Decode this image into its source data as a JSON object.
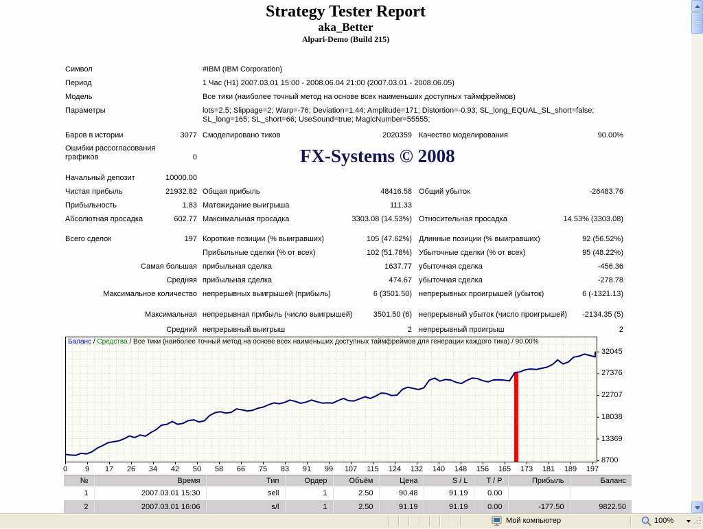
{
  "report": {
    "title": "Strategy Tester Report",
    "subtitle": "aka_Better",
    "build": "Alpari-Demo (Build 215)",
    "watermark": "FX-Systems © 2008"
  },
  "stats": {
    "rows": [
      {
        "a": "Символ",
        "wide": "#IBM (IBM Corporation)"
      },
      {
        "a": "Период",
        "wide": "1 Час (H1) 2007.03.01 15:00 - 2008.06.04 21:00 (2007.03.01 - 2008.06.05)"
      },
      {
        "a": "Модель",
        "wide": "Все тики (наиболее точный метод на основе всех наименьших доступных таймфреймов)"
      },
      {
        "a": "Параметры",
        "wide": "lots=2.5; Slippage=2; Warp=-76; Deviation=1.44; Amplitude=171; Distortion=-0.93; SL_long_EQUAL_SL_short=false; SL_long=165; SL_short=66; UseSound=true; MagicNumber=55555;"
      },
      {
        "a": "Баров в истории",
        "av": "3077",
        "b": "Смоделировано тиков",
        "bv": "2020359",
        "c": "Качество моделирования",
        "cv": "90.00%"
      },
      {
        "a": "Ошибки рассогласования графиков",
        "av": "0"
      },
      {
        "a": "Начальный депозит",
        "av": "10000.00"
      },
      {
        "a": "Чистая прибыль",
        "av": "21932.82",
        "b": "Общая прибыль",
        "bv": "48416.58",
        "c": "Общий убыток",
        "cv": "-26483.76"
      },
      {
        "a": "Прибыльность",
        "av": "1.83",
        "b": "Матожидание выигрыша",
        "bv": "111.33"
      },
      {
        "a": "Абсолютная просадка",
        "av": "602.77",
        "b": "Максимальная просадка",
        "bv": "3303.08 (14.53%)",
        "c": "Относительная просадка",
        "cv": "14.53% (3303.08)"
      },
      {
        "a": "Всего сделок",
        "av": "197",
        "b": "Короткие позиции (% выигравших)",
        "bv": "105 (47.62%)",
        "c": "Длинные позиции (% выигравших)",
        "cv": "92 (56.52%)"
      },
      {
        "b": "Прибыльные сделки (% от всех)",
        "bv": "102 (51.78%)",
        "c": "Убыточные сделки (% от всех)",
        "cv": "95 (48.22%)"
      },
      {
        "a": "Самая большая",
        "aR": true,
        "b": "прибыльная сделка",
        "bv": "1637.77",
        "c": "убыточная сделка",
        "cv": "-456.36"
      },
      {
        "a": "Средняя",
        "aR": true,
        "b": "прибыльная сделка",
        "bv": "474.67",
        "c": "убыточная сделка",
        "cv": "-278.78"
      },
      {
        "a": "Максимальное количество",
        "aR": true,
        "b": "непрерывных выигрышей (прибыль)",
        "bv": "6 (3501.50)",
        "c": "непрерывных проигрышей (убыток)",
        "cv": "6 (-1321.13)"
      },
      {
        "a": "Максимальная",
        "aR": true,
        "b": "непрерывная прибыль (число выигрышей)",
        "bv": "3501.50 (6)",
        "c": "непрерывный убыток (число проигрышей)",
        "cv": "-2134.35 (5)"
      },
      {
        "a": "Средний",
        "aR": true,
        "b": "непрерывный выигрыш",
        "bv": "2",
        "c": "непрерывный проигрыш",
        "cv": "2"
      }
    ]
  },
  "chart_data": {
    "type": "line",
    "legend": {
      "balance": "Баланс",
      "equity": "Средства",
      "separator": " / ",
      "rest": "Все тики (наиболее точный метод на основе всех наименьших доступных таймфреймов для генерации каждого тика) / 90.00%"
    },
    "colors": {
      "balance": "#000080",
      "equity": "#008000",
      "marker": "#ff0000",
      "grid": "#c9d4c6",
      "plot_bg": "#fcfcf7"
    },
    "x_ticks": [
      0,
      9,
      17,
      26,
      34,
      42,
      50,
      58,
      66,
      75,
      83,
      91,
      99,
      107,
      115,
      124,
      132,
      140,
      148,
      156,
      165,
      173,
      181,
      189,
      197
    ],
    "y_ticks": [
      32045,
      27376,
      22707,
      18038,
      13369,
      8700
    ],
    "xlim": [
      0,
      200
    ],
    "ylim": [
      8700,
      32045
    ],
    "series": [
      {
        "name": "Баланс",
        "x": [
          0,
          2,
          4,
          6,
          8,
          10,
          12,
          14,
          16,
          18,
          20,
          22,
          24,
          26,
          28,
          30,
          32,
          34,
          36,
          38,
          40,
          42,
          44,
          46,
          48,
          50,
          52,
          54,
          56,
          58,
          60,
          62,
          64,
          66,
          68,
          70,
          72,
          74,
          76,
          78,
          80,
          82,
          84,
          86,
          88,
          90,
          92,
          94,
          96,
          98,
          100,
          102,
          104,
          106,
          108,
          110,
          112,
          114,
          116,
          118,
          120,
          122,
          124,
          126,
          128,
          130,
          132,
          134,
          136,
          138,
          140,
          142,
          144,
          146,
          148,
          150,
          152,
          154,
          156,
          158,
          160,
          162,
          164,
          166,
          168,
          170,
          172,
          174,
          176,
          178,
          180,
          182,
          184,
          186,
          188,
          190,
          192,
          194,
          196,
          198,
          200
        ],
        "y": [
          10000,
          9850,
          9800,
          10250,
          10100,
          10550,
          11350,
          11900,
          12500,
          12700,
          12900,
          13350,
          13950,
          13600,
          14150,
          13900,
          14700,
          15300,
          16250,
          16450,
          17050,
          16450,
          16650,
          17250,
          17400,
          16950,
          17200,
          18350,
          18950,
          19150,
          18850,
          19000,
          19750,
          19550,
          19300,
          19450,
          19900,
          20150,
          20650,
          21050,
          20850,
          21150,
          21650,
          21350,
          20950,
          21200,
          21650,
          21300,
          21000,
          21050,
          21000,
          21550,
          22000,
          21500,
          21450,
          21900,
          22350,
          22000,
          22500,
          23150,
          23050,
          22600,
          22700,
          23950,
          24400,
          24150,
          23900,
          24250,
          25900,
          26350,
          25700,
          26050,
          25950,
          25450,
          25200,
          25850,
          26350,
          26250,
          25800,
          25550,
          25950,
          26000,
          25900,
          25750,
          27550,
          27700,
          28150,
          28300,
          28200,
          28450,
          28700,
          29250,
          30250,
          29400,
          29800,
          30850,
          31050,
          31500,
          31200,
          30900,
          32045
        ]
      }
    ],
    "marker": {
      "type": "vertical-bar",
      "x": 168.5,
      "y_top": 27600
    }
  },
  "trades": {
    "headers": [
      "№",
      "Время",
      "Тип",
      "Ордер",
      "Объём",
      "Цена",
      "S / L",
      "T / P",
      "Прибыль",
      "Баланс"
    ],
    "rows": [
      [
        "1",
        "2007.03.01 15:30",
        "sell",
        "1",
        "2.50",
        "90.48",
        "91.19",
        "0.00",
        "",
        ""
      ],
      [
        "2",
        "2007.03.01 16:06",
        "s/l",
        "1",
        "2.50",
        "91.19",
        "91.19",
        "0.00",
        "-177.50",
        "9822.50"
      ]
    ]
  },
  "statusbar": {
    "computer_label": "Мой компьютер",
    "zoom_value": "100%"
  }
}
